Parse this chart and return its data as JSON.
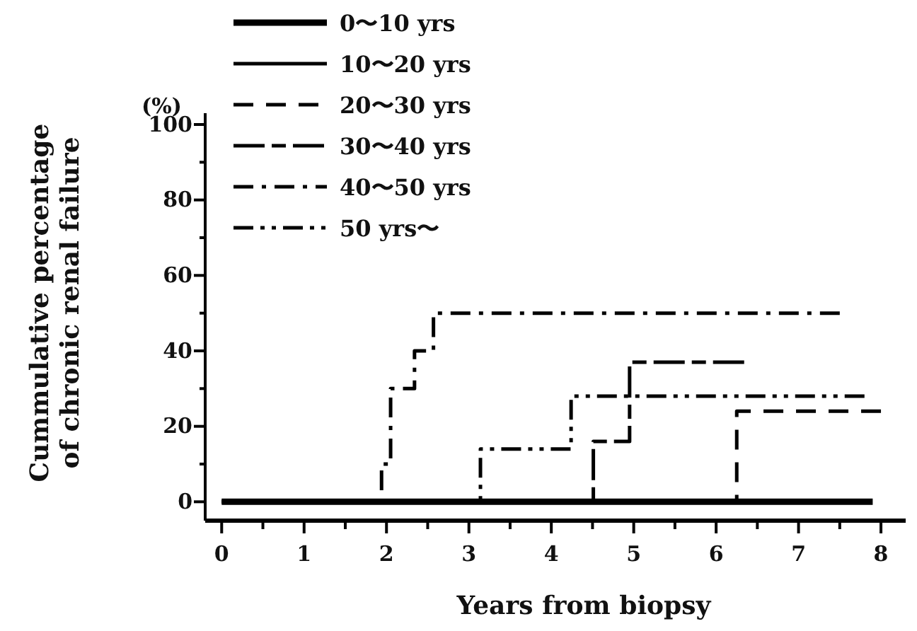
{
  "chart_data": {
    "type": "step",
    "xlabel": "Years from biopsy",
    "ylabel": "Cummulative percentage\nof chronic renal failure",
    "annotations": [
      "(%)"
    ],
    "xlim": [
      -0.2,
      8.3
    ],
    "xticks": [
      0,
      {
        "value": 0.5,
        "label": null
      },
      1,
      {
        "value": 1.5,
        "label": null
      },
      2,
      {
        "value": 2.5,
        "label": null
      },
      3,
      {
        "value": 3.5,
        "label": null
      },
      4,
      {
        "value": 4.5,
        "label": null
      },
      5,
      {
        "value": 5.5,
        "label": null
      },
      6,
      {
        "value": 6.5,
        "label": null
      },
      7,
      {
        "value": 7.5,
        "label": null
      },
      8
    ],
    "ylim": [
      -5,
      103
    ],
    "yticks": [
      0,
      {
        "value": 10,
        "label": null
      },
      20,
      {
        "value": 30,
        "label": null
      },
      40,
      {
        "value": 50,
        "label": null
      },
      60,
      {
        "value": 70,
        "label": null
      },
      80,
      {
        "value": 90,
        "label": null
      },
      100
    ],
    "legend": "top left",
    "grid": false,
    "marker": "none",
    "series": [
      {
        "name": "0〜10 yrs",
        "color": "#000000",
        "line_style": "solid",
        "x": [
          0,
          7.9
        ],
        "values": [
          0,
          0
        ]
      },
      {
        "name": "10〜20 yrs",
        "color": "#000000",
        "line_style": "solid"
      },
      {
        "name": "20〜30 yrs",
        "color": "#000000",
        "line_style": "dashed",
        "x": [
          0,
          6.25,
          8.0
        ],
        "values": [
          0,
          24,
          24
        ]
      },
      {
        "name": "30〜40 yrs",
        "color": "#000000",
        "line_style": "longdash",
        "x": [
          0,
          4.51,
          4.95,
          6.34
        ],
        "values": [
          0,
          16,
          37,
          37
        ]
      },
      {
        "name": "40〜50 yrs",
        "color": "#000000",
        "line_style": "dashdot",
        "x": [
          0,
          1.94,
          2.05,
          2.34,
          2.57,
          7.5
        ],
        "values": [
          0,
          10,
          30,
          40,
          50,
          50
        ]
      },
      {
        "name": "50 yrs〜",
        "color": "#000000",
        "line_style": "dashdotdot",
        "x": [
          0,
          3.14,
          4.24,
          7.8
        ],
        "values": [
          0,
          14,
          28,
          28
        ]
      }
    ]
  }
}
